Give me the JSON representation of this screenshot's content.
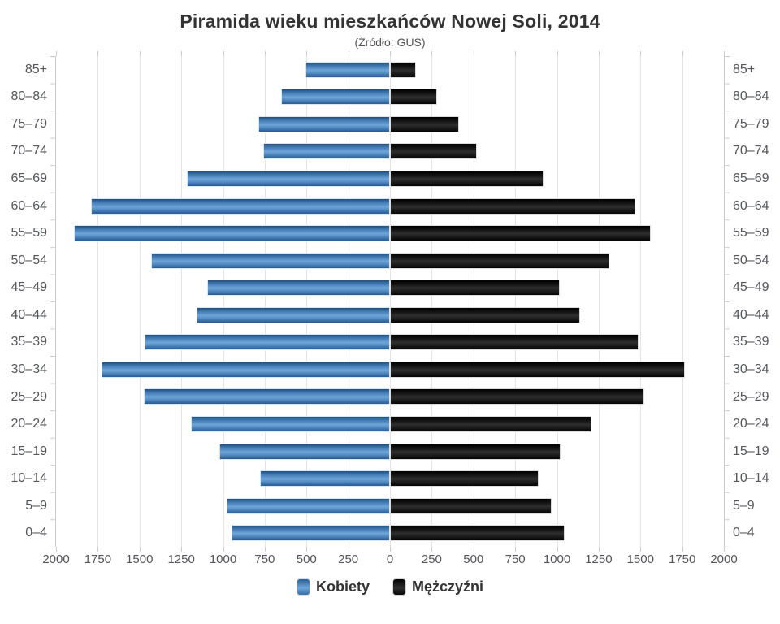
{
  "title": "Piramida wieku mieszkańców Nowej Soli, 2014",
  "subtitle": "(Źródło: GUS)",
  "legend": {
    "items": [
      {
        "label": "Kobiety",
        "color": "#4f87bd"
      },
      {
        "label": "Mężczyźni",
        "color": "#1a1a1a"
      }
    ]
  },
  "chart_data": {
    "type": "bar",
    "variant": "population-pyramid",
    "title": "Piramida wieku mieszkańców Nowej Soli, 2014",
    "subtitle": "(Źródło: GUS)",
    "categories": [
      "85+",
      "80–84",
      "75–79",
      "70–74",
      "65–69",
      "60–64",
      "55–59",
      "50–54",
      "45–49",
      "40–44",
      "35–39",
      "30–34",
      "25–29",
      "20–24",
      "15–19",
      "10–14",
      "5–9",
      "0–4"
    ],
    "series": [
      {
        "name": "Kobiety",
        "side": "left",
        "color": "#4f87bd",
        "values": [
          505,
          650,
          790,
          760,
          1215,
          1790,
          1895,
          1430,
          1095,
          1160,
          1470,
          1730,
          1475,
          1190,
          1020,
          780,
          980,
          950
        ]
      },
      {
        "name": "Mężczyźni",
        "side": "right",
        "color": "#1a1a1a",
        "values": [
          155,
          280,
          415,
          520,
          920,
          1470,
          1560,
          1315,
          1015,
          1140,
          1490,
          1765,
          1525,
          1205,
          1020,
          890,
          970,
          1045
        ]
      }
    ],
    "xlabel": "",
    "ylabel": "",
    "axis_max_per_side": 2000,
    "x_tick_labels": [
      "2000",
      "1750",
      "1500",
      "1250",
      "1000",
      "750",
      "500",
      "250",
      "0",
      "250",
      "500",
      "750",
      "1000",
      "1250",
      "1500",
      "1750",
      "2000"
    ],
    "grid": true,
    "legend_position": "bottom"
  }
}
